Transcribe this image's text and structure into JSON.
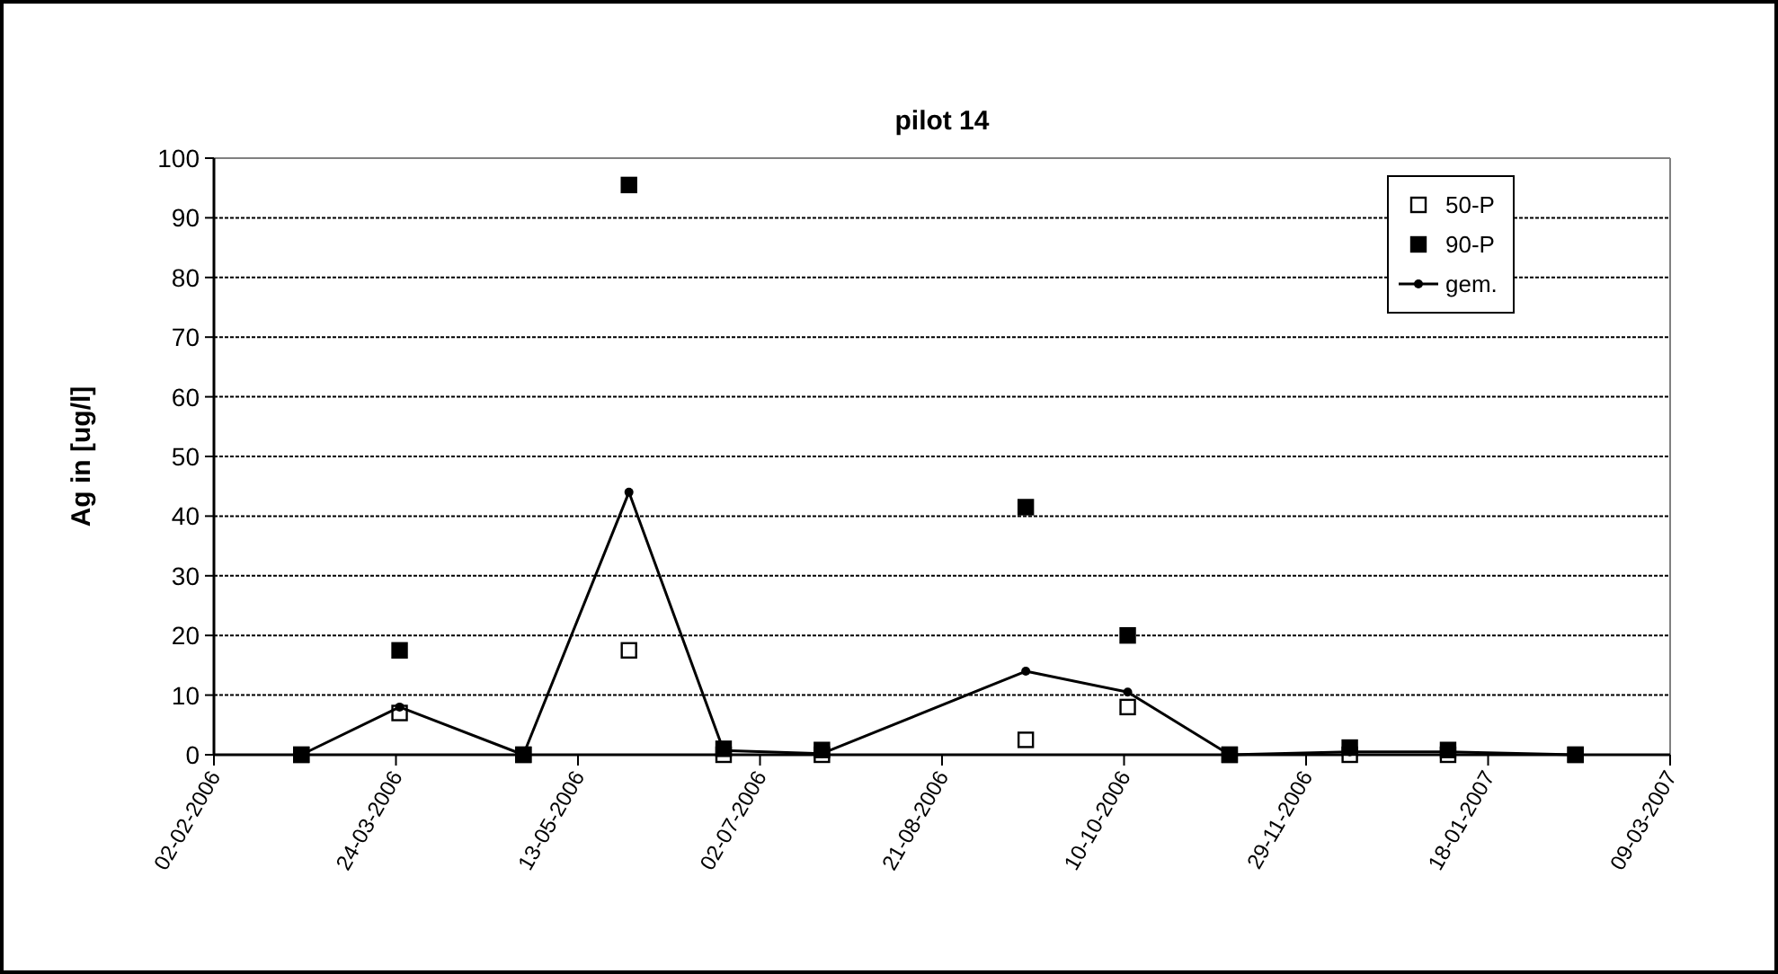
{
  "chart_data": {
    "type": "line",
    "title": "pilot 14",
    "ylabel": "Ag in [ug/l]",
    "xlim": [
      "2006-02-02",
      "2007-03-09"
    ],
    "xticks": [
      {
        "value": "2006-02-02",
        "label": "02-02-2006"
      },
      {
        "value": "2006-03-24",
        "label": "24-03-2006"
      },
      {
        "value": "2006-05-13",
        "label": "13-05-2006"
      },
      {
        "value": "2006-07-02",
        "label": "02-07-2006"
      },
      {
        "value": "2006-08-21",
        "label": "21-08-2006"
      },
      {
        "value": "2006-10-10",
        "label": "10-10-2006"
      },
      {
        "value": "2006-11-29",
        "label": "29-11-2006"
      },
      {
        "value": "2007-01-18",
        "label": "18-01-2007"
      },
      {
        "value": "2007-03-09",
        "label": "09-03-2007"
      }
    ],
    "ylim": [
      0,
      100
    ],
    "yticks": [
      0,
      10,
      20,
      30,
      40,
      50,
      60,
      70,
      80,
      90,
      100
    ],
    "grid": "y",
    "legend": "top right",
    "series": [
      {
        "name": "50-P",
        "type": "scatter",
        "marker": "square",
        "color": "#ffffff",
        "x": [
          "2006-02-26",
          "2006-03-25",
          "2006-04-28",
          "2006-05-27",
          "2006-06-22",
          "2006-07-19",
          "2006-09-13",
          "2006-10-11",
          "2006-11-08",
          "2006-12-11",
          "2007-01-07",
          "2007-02-11"
        ],
        "values": [
          0,
          7,
          0,
          17.5,
          0,
          0,
          2.5,
          8,
          0,
          0,
          0,
          0
        ]
      },
      {
        "name": "90-P",
        "type": "scatter",
        "marker": "square",
        "color": "#000000",
        "x": [
          "2006-02-26",
          "2006-03-25",
          "2006-04-28",
          "2006-05-27",
          "2006-06-22",
          "2006-07-19",
          "2006-09-13",
          "2006-10-11",
          "2006-11-08",
          "2006-12-11",
          "2007-01-07",
          "2007-02-11"
        ],
        "values": [
          0,
          17.5,
          0,
          95.5,
          1,
          0.8,
          41.5,
          20,
          0,
          1.2,
          0.8,
          0
        ]
      },
      {
        "name": "gem.",
        "marker": "circle",
        "color": "#000000",
        "x": [
          "2006-02-26",
          "2006-03-25",
          "2006-04-28",
          "2006-05-27",
          "2006-06-22",
          "2006-07-19",
          "2006-09-13",
          "2006-10-11",
          "2006-11-08",
          "2006-12-11",
          "2007-01-07",
          "2007-02-11"
        ],
        "values": [
          0,
          8,
          0,
          44,
          0.7,
          0.2,
          14,
          10.5,
          0,
          0.5,
          0.5,
          0
        ]
      }
    ]
  }
}
